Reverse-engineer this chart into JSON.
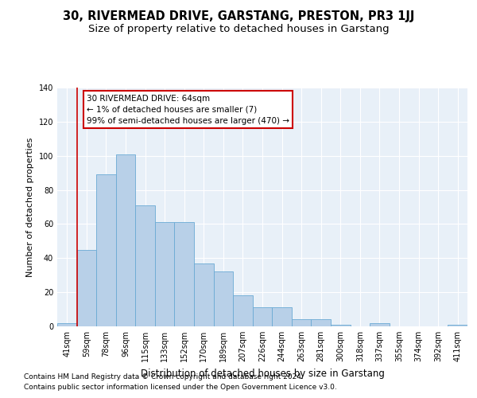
{
  "title": "30, RIVERMEAD DRIVE, GARSTANG, PRESTON, PR3 1JJ",
  "subtitle": "Size of property relative to detached houses in Garstang",
  "xlabel": "Distribution of detached houses by size in Garstang",
  "ylabel": "Number of detached properties",
  "categories": [
    "41sqm",
    "59sqm",
    "78sqm",
    "96sqm",
    "115sqm",
    "133sqm",
    "152sqm",
    "170sqm",
    "189sqm",
    "207sqm",
    "226sqm",
    "244sqm",
    "263sqm",
    "281sqm",
    "300sqm",
    "318sqm",
    "337sqm",
    "355sqm",
    "374sqm",
    "392sqm",
    "411sqm"
  ],
  "values": [
    2,
    45,
    89,
    101,
    71,
    61,
    61,
    37,
    32,
    18,
    11,
    11,
    4,
    4,
    1,
    0,
    2,
    0,
    0,
    0,
    1
  ],
  "bar_color": "#b8d0e8",
  "bar_edge_color": "#6aaad4",
  "background_color": "#e8f0f8",
  "grid_color": "#ffffff",
  "annotation_text_line1": "30 RIVERMEAD DRIVE: 64sqm",
  "annotation_text_line2": "← 1% of detached houses are smaller (7)",
  "annotation_text_line3": "99% of semi-detached houses are larger (470) →",
  "annotation_box_facecolor": "#ffffff",
  "annotation_box_edgecolor": "#cc0000",
  "vline_color": "#cc0000",
  "vline_x": 0.5,
  "ylim": [
    0,
    140
  ],
  "yticks": [
    0,
    20,
    40,
    60,
    80,
    100,
    120,
    140
  ],
  "footer_line1": "Contains HM Land Registry data © Crown copyright and database right 2024.",
  "footer_line2": "Contains public sector information licensed under the Open Government Licence v3.0.",
  "title_fontsize": 10.5,
  "subtitle_fontsize": 9.5,
  "xlabel_fontsize": 8.5,
  "ylabel_fontsize": 8,
  "tick_fontsize": 7,
  "annotation_fontsize": 7.5,
  "footer_fontsize": 6.5
}
